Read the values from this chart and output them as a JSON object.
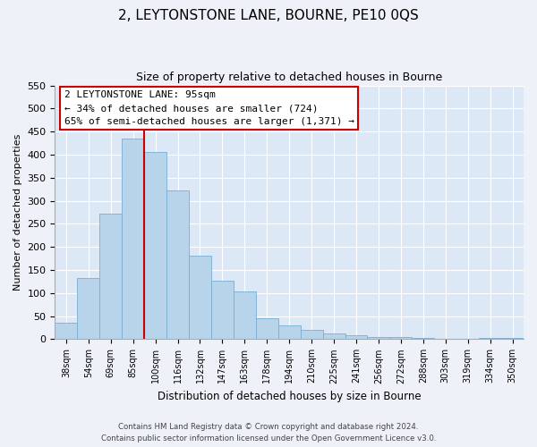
{
  "title": "2, LEYTONSTONE LANE, BOURNE, PE10 0QS",
  "subtitle": "Size of property relative to detached houses in Bourne",
  "xlabel": "Distribution of detached houses by size in Bourne",
  "ylabel": "Number of detached properties",
  "categories": [
    "38sqm",
    "54sqm",
    "69sqm",
    "85sqm",
    "100sqm",
    "116sqm",
    "132sqm",
    "147sqm",
    "163sqm",
    "178sqm",
    "194sqm",
    "210sqm",
    "225sqm",
    "241sqm",
    "256sqm",
    "272sqm",
    "288sqm",
    "303sqm",
    "319sqm",
    "334sqm",
    "350sqm"
  ],
  "values": [
    35,
    133,
    272,
    435,
    405,
    323,
    182,
    126,
    103,
    45,
    30,
    20,
    12,
    8,
    4,
    5,
    2,
    1,
    1,
    2,
    3
  ],
  "bar_color": "#b8d4ea",
  "bar_edge_color": "#7aaed0",
  "redline_color": "#cc0000",
  "annotation_title": "2 LEYTONSTONE LANE: 95sqm",
  "annotation_line1": "← 34% of detached houses are smaller (724)",
  "annotation_line2": "65% of semi-detached houses are larger (1,371) →",
  "annotation_box_color": "#ffffff",
  "annotation_box_edge": "#cc0000",
  "ylim": [
    0,
    550
  ],
  "yticks": [
    0,
    50,
    100,
    150,
    200,
    250,
    300,
    350,
    400,
    450,
    500,
    550
  ],
  "footer_line1": "Contains HM Land Registry data © Crown copyright and database right 2024.",
  "footer_line2": "Contains public sector information licensed under the Open Government Licence v3.0.",
  "bg_color": "#eef2f8",
  "plot_bg_color": "#dce8f5"
}
